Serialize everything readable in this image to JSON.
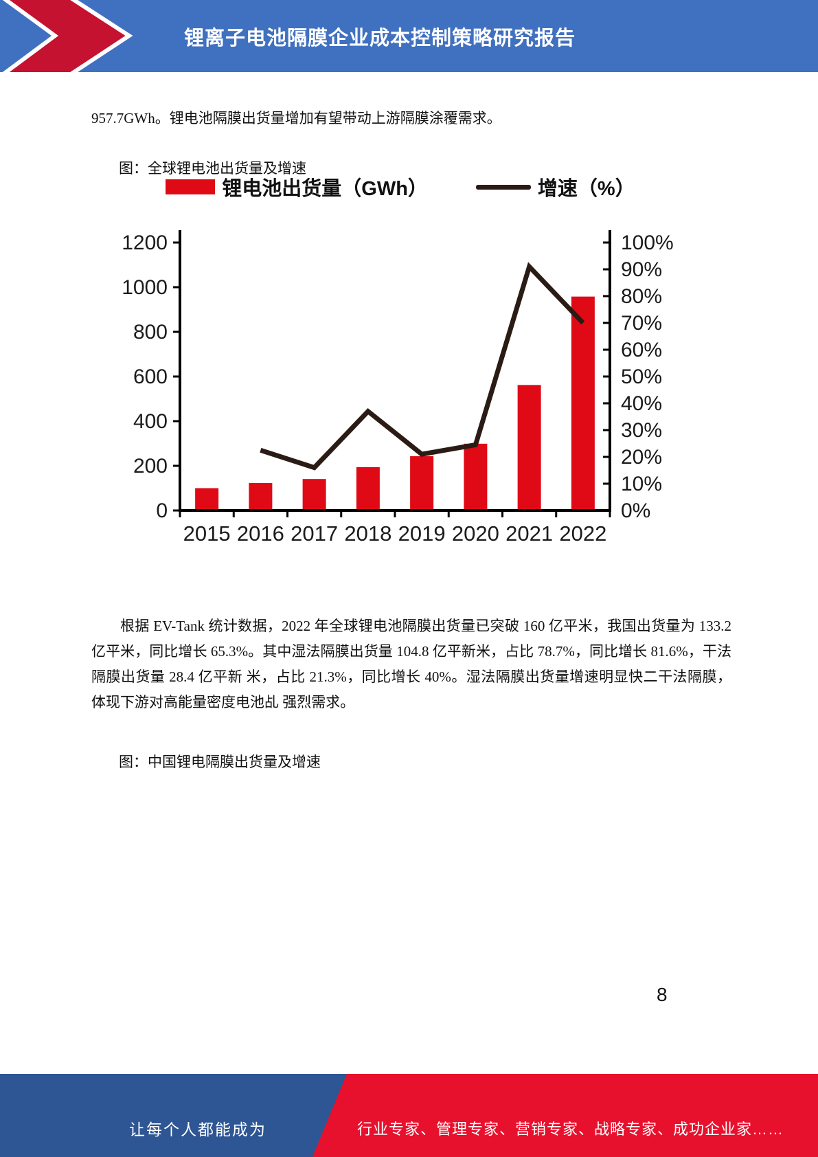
{
  "header": {
    "title": "锂离子电池隔膜企业成本控制策略研究报告"
  },
  "body": {
    "paragraph_top": "957.7GWh。锂电池隔膜出货量增加有望带动上游隔膜涂覆需求。",
    "figure1_caption": "图：全球锂电池出货量及增速",
    "paragraph_main": "根据 EV-Tank 统计数据，2022 年全球锂电池隔膜出货量已突破 160 亿平米，我国出货量为 133.2 亿平米，同比增长 65.3%。其中湿法隔膜出货量 104.8 亿平新米，占比 78.7%，同比增长 81.6%，干法隔膜出货量 28.4 亿平新 米，占比 21.3%，同比增长 40%。湿法隔膜出货量增速明显快二干法隔膜，体现下游对高能量密度电池乩 强烈需求。",
    "figure2_caption": "图：中国锂电隔膜出货量及增速"
  },
  "page": {
    "number": "8"
  },
  "footer": {
    "left_text": "让每个人都能成为",
    "right_text": "行业专家、管理专家、营销专家、战略专家、成功企业家……"
  },
  "chart_data": {
    "type": "bar",
    "combo": "bar+line, dual axis",
    "title": "全球锂电池出货量及增速",
    "categories": [
      "2015",
      "2016",
      "2017",
      "2018",
      "2019",
      "2020",
      "2021",
      "2022"
    ],
    "series": [
      {
        "name": "锂电池出货量（GWh）",
        "type": "bar",
        "axis": "left",
        "values": [
          100,
          123,
          141,
          194,
          243,
          299,
          562,
          958
        ]
      },
      {
        "name": "增速（%）",
        "type": "line",
        "axis": "right",
        "values": [
          null,
          22.5,
          16,
          37,
          21,
          24.5,
          91,
          70
        ]
      }
    ],
    "left_axis": {
      "min": 0,
      "max": 1200,
      "step": 200
    },
    "right_axis": {
      "min": 0,
      "max": 100,
      "step": 10,
      "suffix": "%"
    },
    "legend_position": "top",
    "grid": false,
    "xlabel": "",
    "ylabel": ""
  },
  "colors": {
    "header_blue": "#4070C0",
    "arrow_red": "#C41230",
    "bar_red": "#DF0A16",
    "line_dark": "#2A1C15",
    "footer_blue": "#2E5594",
    "footer_red": "#E8112D",
    "axis_text": "#1b1b1b"
  }
}
